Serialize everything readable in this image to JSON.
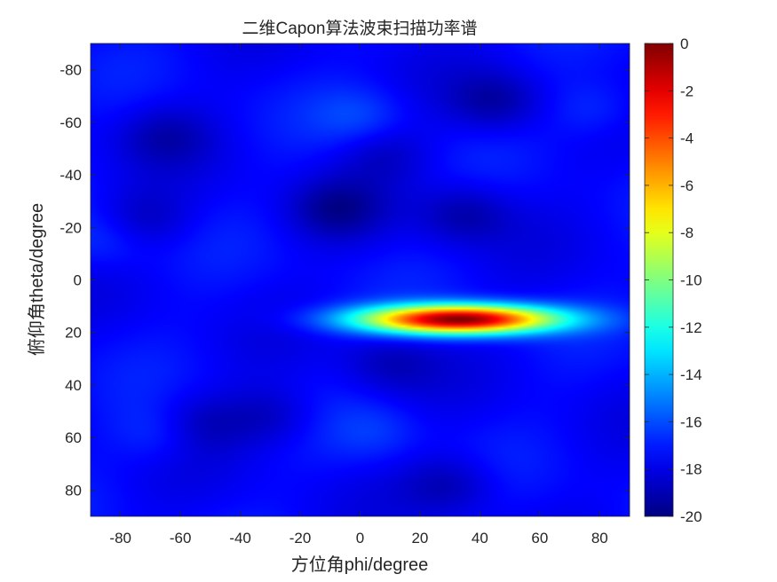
{
  "chart_data": {
    "type": "heatmap",
    "title": "二维Capon算法波束扫描功率谱",
    "xlabel": "方位角phi/degree",
    "ylabel": "俯仰角theta/degree",
    "xlim": [
      -90,
      90
    ],
    "ylim": [
      -90,
      90
    ],
    "y_direction": "reverse",
    "x_ticks": [
      -80,
      -60,
      -40,
      -20,
      0,
      20,
      40,
      60,
      80
    ],
    "y_ticks": [
      -80,
      -60,
      -40,
      -20,
      0,
      20,
      40,
      60,
      80
    ],
    "colormap": "jet",
    "colorbar": {
      "range": [
        -20,
        0
      ],
      "ticks": [
        0,
        -2,
        -4,
        -6,
        -8,
        -10,
        -12,
        -14,
        -16,
        -18,
        -20
      ],
      "placement": "right"
    },
    "background_level_db": -17.5,
    "peak": {
      "phi": 33,
      "theta": 15,
      "value_db": 0
    },
    "peak_extent": {
      "phi_range": [
        5,
        65
      ],
      "theta_range": [
        10,
        20
      ]
    },
    "hotspots": [
      {
        "phi": -8,
        "theta": -27,
        "value_db": -19.3
      },
      {
        "phi": 35,
        "theta": -25,
        "value_db": -19.2
      },
      {
        "phi": 45,
        "theta": -68,
        "value_db": -19.3
      },
      {
        "phi": -55,
        "theta": 55,
        "value_db": -19.0
      },
      {
        "phi": 30,
        "theta": 78,
        "value_db": -19.0
      },
      {
        "phi": -30,
        "theta": 52,
        "value_db": -18.8
      },
      {
        "phi": 10,
        "theta": 32,
        "value_db": -18.8
      },
      {
        "phi": -65,
        "theta": -55,
        "value_db": -18.8
      },
      {
        "phi": 8,
        "theta": -48,
        "value_db": -18.6
      },
      {
        "phi": -72,
        "theta": -23,
        "value_db": -18.7
      },
      {
        "phi": 0,
        "theta": -62,
        "value_db": -16.3
      },
      {
        "phi": 78,
        "theta": -65,
        "value_db": -16.4
      },
      {
        "phi": -65,
        "theta": 58,
        "value_db": -16.2
      },
      {
        "phi": -85,
        "theta": -15,
        "value_db": -16.5
      },
      {
        "phi": 5,
        "theta": 58,
        "value_db": -16.6
      }
    ]
  }
}
